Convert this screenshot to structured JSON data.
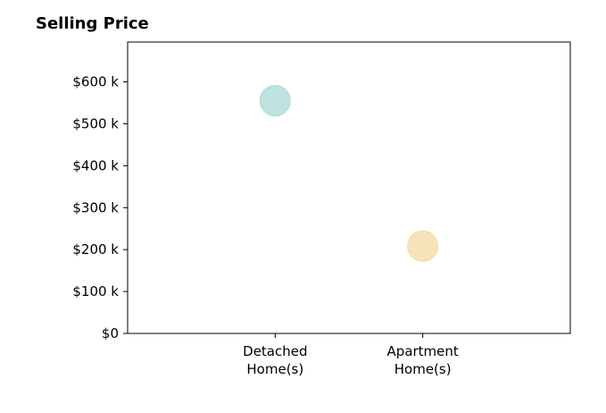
{
  "chart_data": {
    "type": "scatter",
    "title": "Selling Price",
    "xlabel": "",
    "ylabel": "",
    "categories": [
      [
        "Detached",
        "Home(s)"
      ],
      [
        "Apartment",
        "Home(s)"
      ]
    ],
    "points": [
      {
        "category_index": 0,
        "value": 555000,
        "color": "#a8dad5"
      },
      {
        "category_index": 1,
        "value": 208000,
        "color": "#f3d9a3"
      }
    ],
    "y_ticks": [
      0,
      100000,
      200000,
      300000,
      400000,
      500000,
      600000
    ],
    "y_tick_labels": [
      "$0",
      "$100 k",
      "$200 k",
      "$300 k",
      "$400 k",
      "$500 k",
      "$600 k"
    ],
    "ylim": [
      0,
      695000
    ],
    "x_range": [
      -1,
      2
    ],
    "grid": false,
    "legend": "none"
  }
}
